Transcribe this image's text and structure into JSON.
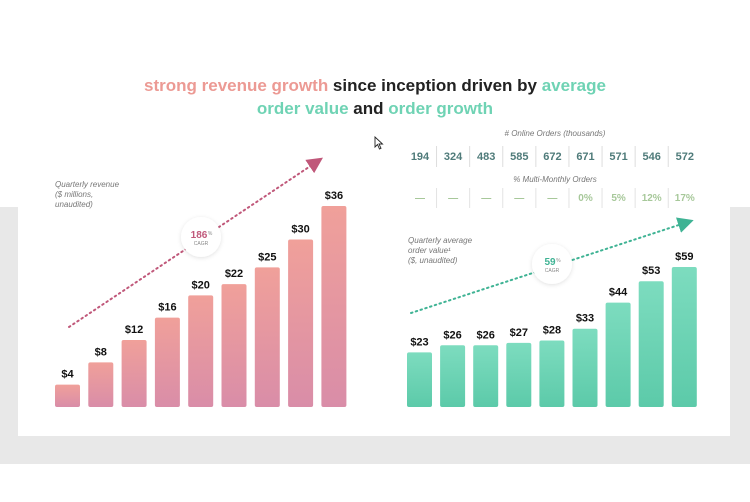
{
  "title": {
    "line1": [
      {
        "text": "strong revenue growth",
        "color": "pink"
      },
      {
        "text": " since inception driven by ",
        "color": "dark"
      },
      {
        "text": "average",
        "color": "green"
      }
    ],
    "line2": [
      {
        "text": "order value",
        "color": "green"
      },
      {
        "text": " and ",
        "color": "dark"
      },
      {
        "text": "order growth",
        "color": "green"
      }
    ]
  },
  "colors": {
    "pink_top": "#f0a09a",
    "pink_bottom": "#d98da8",
    "green_top": "#7ddcbf",
    "green_bottom": "#5ccaa9",
    "arrow_pink": "#c0587a",
    "arrow_green": "#3fb394",
    "gray_band": "#e8e8e8"
  },
  "chart_data": [
    {
      "type": "bar",
      "note_lines": [
        "Quarterly revenue",
        "($ millions,",
        "unaudited)"
      ],
      "value_labels": [
        "$4",
        "$8",
        "$12",
        "$16",
        "$20",
        "$22",
        "$25",
        "$30",
        "$36"
      ],
      "values": [
        4,
        8,
        12,
        16,
        20,
        22,
        25,
        30,
        36
      ],
      "ylim": [
        0,
        36
      ],
      "cagr": {
        "value": "186",
        "unit": "%",
        "label": "CAGR"
      }
    },
    {
      "type": "bar",
      "note_lines": [
        "Quarterly average",
        "order value¹",
        "($, unaudited)"
      ],
      "value_labels": [
        "$23",
        "$26",
        "$26",
        "$27",
        "$28",
        "$33",
        "$44",
        "$53",
        "$59"
      ],
      "values": [
        23,
        26,
        26,
        27,
        28,
        33,
        44,
        53,
        59
      ],
      "ylim": [
        0,
        59
      ],
      "cagr": {
        "value": "59",
        "unit": "%",
        "label": "CAGR"
      }
    }
  ],
  "orders_table": {
    "header": "# Online Orders (thousands)",
    "values": [
      "194",
      "324",
      "483",
      "585",
      "672",
      "671",
      "571",
      "546",
      "572"
    ]
  },
  "multi_table": {
    "header": "% Multi-Monthly Orders",
    "values": [
      "—",
      "—",
      "—",
      "—",
      "—",
      "0%",
      "5%",
      "12%",
      "17%"
    ]
  }
}
